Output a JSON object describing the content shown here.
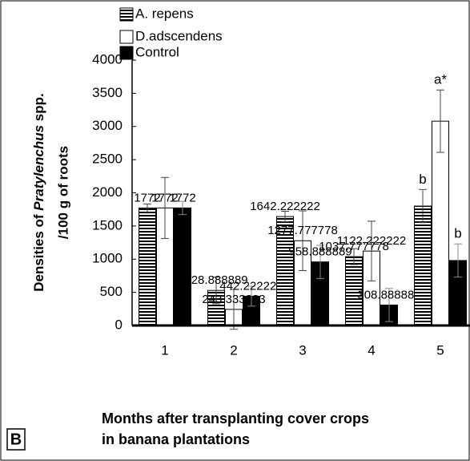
{
  "chart_data": {
    "type": "bar",
    "panel_label": "B",
    "ylabel_parts": [
      "Densities of",
      "Pratylenchus",
      "spp."
    ],
    "ylabel_line2": "/100 g of roots",
    "xlabel_lines": [
      "Months after transplanting cover crops",
      "in banana plantations"
    ],
    "categories": [
      "1",
      "2",
      "3",
      "4",
      "5"
    ],
    "ylim": [
      0,
      4000
    ],
    "yticks": [
      0,
      500,
      1000,
      1500,
      2000,
      2500,
      3000,
      3500,
      4000
    ],
    "series": [
      {
        "name": "A. repens",
        "color": "#000000",
        "hatch": true,
        "values": [
          1772,
          528.888889,
          1642.222222,
          1037.777778,
          1800
        ],
        "errors": [
          60,
          200,
          80,
          120,
          250
        ],
        "value_labels": [
          "1772",
          "528.888889",
          "1642.222222",
          "1037.777778",
          null
        ],
        "letters": [
          null,
          null,
          null,
          null,
          "b"
        ]
      },
      {
        "name": "D.adscendens",
        "color": "#ffffff",
        "hatch": false,
        "values": [
          1772,
          243.333333,
          1277.777778,
          1122.222222,
          3080
        ],
        "errors": [
          460,
          300,
          450,
          450,
          470
        ],
        "value_labels": [
          "1772",
          "243.333333",
          "1277.777778",
          "1122.222222",
          null
        ],
        "letters": [
          null,
          null,
          null,
          null,
          "a*"
        ]
      },
      {
        "name": "Control",
        "color": "#000000",
        "hatch": false,
        "values": [
          1772,
          442.222222,
          958.888889,
          308.888889,
          980
        ],
        "errors": [
          100,
          150,
          250,
          250,
          250
        ],
        "value_labels": [
          "1772",
          "442.222222",
          "958.888889",
          "308.888889",
          null
        ],
        "letters": [
          null,
          null,
          null,
          null,
          "b"
        ]
      }
    ]
  }
}
